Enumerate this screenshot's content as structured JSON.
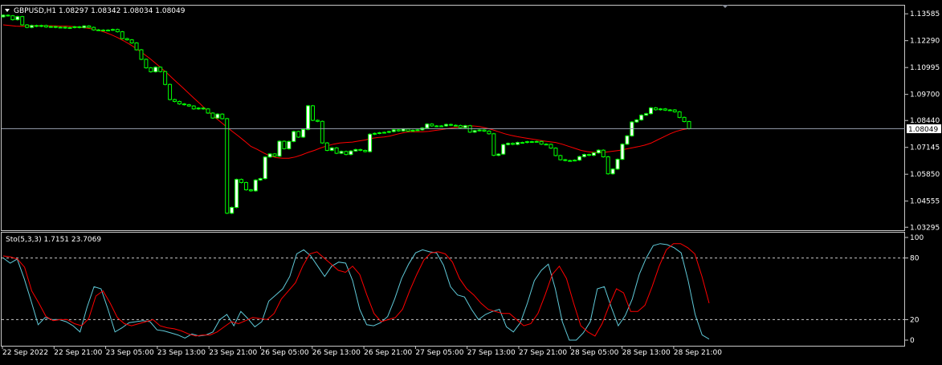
{
  "window": {
    "symbol_info": "GBPUSD,H1  1.08297 1.08342 1.08034 1.08049",
    "current_price_tag": "1.08049"
  },
  "colors": {
    "background": "#000000",
    "bull": "#00ff00",
    "bull_body": "#ffffff",
    "bear": "#00ff00",
    "bear_body": "#000000",
    "ma": "#ff0000",
    "stoch_main": "#5fc9d8",
    "stoch_signal": "#ff0000",
    "axis": "#c8c8c8",
    "price_line": "#9aa0b0"
  },
  "icons": [
    "dropdown-triangle-icon",
    "scroll-marker-icon"
  ],
  "chart_data": [
    {
      "type": "candlestick",
      "title": "GBPUSD,H1",
      "ohlc_readout": [
        "1.08297",
        "1.08342",
        "1.08034",
        "1.08049"
      ],
      "y_ticks": [
        "1.13585",
        "1.12290",
        "1.10995",
        "1.09700",
        "1.08440",
        "1.07145",
        "1.05850",
        "1.04555",
        "1.03295"
      ],
      "ylim": [
        1.0315,
        1.1398
      ],
      "current_price": 1.08049,
      "grid": false,
      "candles_close": [
        1.1352,
        1.1349,
        1.133,
        1.1345,
        1.1305,
        1.1293,
        1.1302,
        1.1298,
        1.1302,
        1.1295,
        1.1297,
        1.1293,
        1.1294,
        1.129,
        1.1292,
        1.1296,
        1.1292,
        1.13,
        1.1293,
        1.1281,
        1.128,
        1.128,
        1.128,
        1.1283,
        1.1272,
        1.1239,
        1.1233,
        1.1218,
        1.1185,
        1.1139,
        1.1098,
        1.1079,
        1.1101,
        1.108,
        1.1018,
        1.0945,
        1.0936,
        1.0924,
        1.092,
        1.0914,
        1.09,
        1.0904,
        1.09,
        1.088,
        1.0856,
        1.0875,
        1.0853,
        1.0397,
        1.0425,
        1.056,
        1.0545,
        1.051,
        1.0505,
        1.0557,
        1.0564,
        1.0668,
        1.0683,
        1.0672,
        1.0744,
        1.0708,
        1.0743,
        1.0791,
        1.0764,
        1.0801,
        1.0915,
        1.0845,
        1.084,
        1.0736,
        1.07,
        1.0712,
        1.0686,
        1.0695,
        1.068,
        1.0697,
        1.0704,
        1.07,
        1.0694,
        1.0778,
        1.0782,
        1.0785,
        1.0787,
        1.0791,
        1.0799,
        1.0794,
        1.0803,
        1.0793,
        1.0797,
        1.0799,
        1.0808,
        1.0827,
        1.0818,
        1.0818,
        1.0818,
        1.0825,
        1.0821,
        1.082,
        1.081,
        1.0819,
        1.0788,
        1.0795,
        1.0798,
        1.0793,
        1.078,
        1.0676,
        1.0682,
        1.0728,
        1.0734,
        1.0729,
        1.0738,
        1.0738,
        1.0742,
        1.0742,
        1.0743,
        1.073,
        1.0729,
        1.0711,
        1.0675,
        1.0655,
        1.0651,
        1.0651,
        1.0653,
        1.067,
        1.068,
        1.0676,
        1.0688,
        1.0701,
        1.0669,
        1.0587,
        1.061,
        1.0657,
        1.073,
        1.077,
        1.0837,
        1.0847,
        1.087,
        1.0877,
        1.0905,
        1.0896,
        1.09,
        1.0894,
        1.0895,
        1.0886,
        1.0859,
        1.0839,
        1.0805
      ],
      "ma_line": [
        1.1305,
        1.1302,
        1.1299,
        1.1298,
        1.13,
        1.1301,
        1.1301,
        1.1301,
        1.13,
        1.1299,
        1.1299,
        1.1297,
        1.1294,
        1.129,
        1.1286,
        1.1279,
        1.127,
        1.1258,
        1.1244,
        1.1228,
        1.121,
        1.119,
        1.1168,
        1.1145,
        1.112,
        1.1094,
        1.1067,
        1.1038,
        1.101,
        1.0982,
        1.0953,
        1.0925,
        1.0895,
        1.0868,
        1.0843,
        1.0818,
        1.0793,
        1.077,
        1.0745,
        1.0719,
        1.0705,
        1.0688,
        1.0673,
        1.0665,
        1.0662,
        1.0662,
        1.0668,
        1.0678,
        1.069,
        1.07,
        1.0712,
        1.0722,
        1.073,
        1.0736,
        1.0738,
        1.074,
        1.0745,
        1.075,
        1.0758,
        1.0762,
        1.0765,
        1.077,
        1.0778,
        1.0785,
        1.079,
        1.079,
        1.079,
        1.0792,
        1.0796,
        1.08,
        1.0805,
        1.081,
        1.0813,
        1.0817,
        1.0818,
        1.0815,
        1.0808,
        1.08,
        1.079,
        1.078,
        1.0772,
        1.0766,
        1.0761,
        1.0756,
        1.0751,
        1.0746,
        1.0742,
        1.0738,
        1.073,
        1.072,
        1.071,
        1.07,
        1.0694,
        1.069,
        1.069,
        1.0692,
        1.0696,
        1.07,
        1.0706,
        1.0712,
        1.0718,
        1.0725,
        1.0735,
        1.075,
        1.0765,
        1.078,
        1.0792,
        1.08,
        1.0806
      ]
    },
    {
      "type": "line",
      "title": "Sto(5,3,3)",
      "readout": [
        "1.7151",
        "23.7069"
      ],
      "y_ticks": [
        "100",
        "80",
        "20",
        "0"
      ],
      "ylim": [
        0,
        100
      ],
      "levels": [
        80,
        20
      ],
      "x_labels": [
        "22 Sep 2022",
        "22 Sep 21:00",
        "23 Sep 05:00",
        "23 Sep 13:00",
        "23 Sep 21:00",
        "26 Sep 05:00",
        "26 Sep 13:00",
        "26 Sep 21:00",
        "27 Sep 05:00",
        "27 Sep 13:00",
        "27 Sep 21:00",
        "28 Sep 05:00",
        "28 Sep 13:00",
        "28 Sep 21:00"
      ],
      "series": [
        {
          "name": "main",
          "values": [
            80,
            75,
            79,
            60,
            38,
            15,
            22,
            20,
            20,
            18,
            14,
            8,
            32,
            52,
            50,
            30,
            8,
            12,
            17,
            18,
            19,
            18,
            10,
            9,
            7,
            5,
            2,
            6,
            4,
            5,
            8,
            20,
            25,
            14,
            28,
            21,
            13,
            18,
            38,
            44,
            50,
            62,
            84,
            88,
            82,
            72,
            62,
            72,
            76,
            75,
            58,
            30,
            15,
            14,
            17,
            23,
            40,
            60,
            74,
            85,
            88,
            86,
            85,
            73,
            52,
            44,
            42,
            30,
            20,
            25,
            28,
            30,
            13,
            8,
            17,
            36,
            58,
            68,
            74,
            50,
            18,
            0,
            0,
            7,
            18,
            50,
            52,
            32,
            14,
            24,
            40,
            64,
            80,
            92,
            94,
            93,
            90,
            85,
            58,
            25,
            5,
            1
          ]
        },
        {
          "name": "signal",
          "values": [
            82,
            81,
            79,
            71,
            48,
            36,
            23,
            19,
            20,
            20,
            16,
            14,
            21,
            43,
            48,
            36,
            22,
            16,
            14,
            16,
            18,
            20,
            14,
            12,
            11,
            9,
            6,
            4,
            5,
            5,
            8,
            13,
            18,
            16,
            19,
            22,
            21,
            20,
            26,
            40,
            48,
            56,
            72,
            84,
            86,
            80,
            74,
            68,
            66,
            72,
            64,
            44,
            26,
            18,
            20,
            22,
            30,
            48,
            64,
            78,
            85,
            86,
            84,
            76,
            60,
            50,
            44,
            36,
            30,
            28,
            26,
            26,
            20,
            14,
            16,
            26,
            44,
            64,
            72,
            60,
            36,
            14,
            8,
            4,
            16,
            34,
            50,
            46,
            28,
            28,
            34,
            52,
            72,
            88,
            94,
            94,
            90,
            84,
            62,
            36
          ]
        }
      ]
    }
  ]
}
